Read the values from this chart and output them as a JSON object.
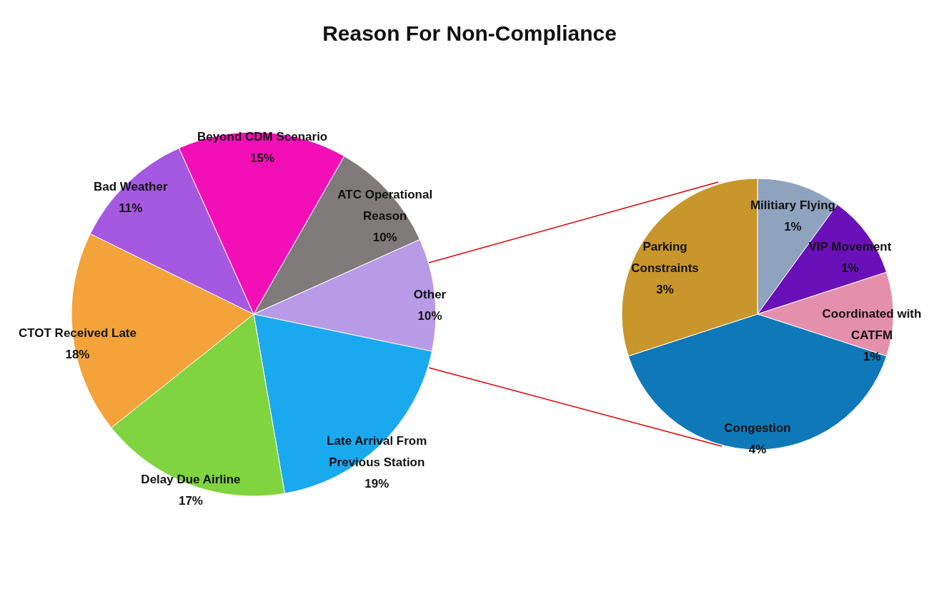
{
  "chart_data": [
    {
      "type": "pie",
      "title": "Reason For Non-Compliance",
      "categories": [
        "ATC Operational Reason",
        "Other",
        "Late Arrival From Previous Station",
        "Delay Due Airline",
        "CTOT Received Late",
        "Bad Weather",
        "Beyond CDM Scenario"
      ],
      "values": [
        10,
        10,
        19,
        17,
        18,
        11,
        15
      ],
      "value_labels": [
        "10%",
        "10%",
        "19%",
        "17%",
        "18%",
        "11%",
        "15%"
      ],
      "colors": [
        "#7f7b7a",
        "#b99ae6",
        "#1aa9ef",
        "#7fd43f",
        "#f3a33a",
        "#a558e0",
        "#f20fb5"
      ]
    },
    {
      "type": "pie",
      "categories": [
        "Militiary Flying",
        "VIP Movement",
        "Coordinated with CATFM",
        "Congestion",
        "Parking Constraints"
      ],
      "values": [
        1,
        1,
        1,
        4,
        3
      ],
      "value_labels": [
        "1%",
        "1%",
        "1%",
        "4%",
        "3%"
      ],
      "colors": [
        "#8fa3bf",
        "#6a10b8",
        "#e48fac",
        "#0f78b8",
        "#c8962a"
      ]
    }
  ]
}
